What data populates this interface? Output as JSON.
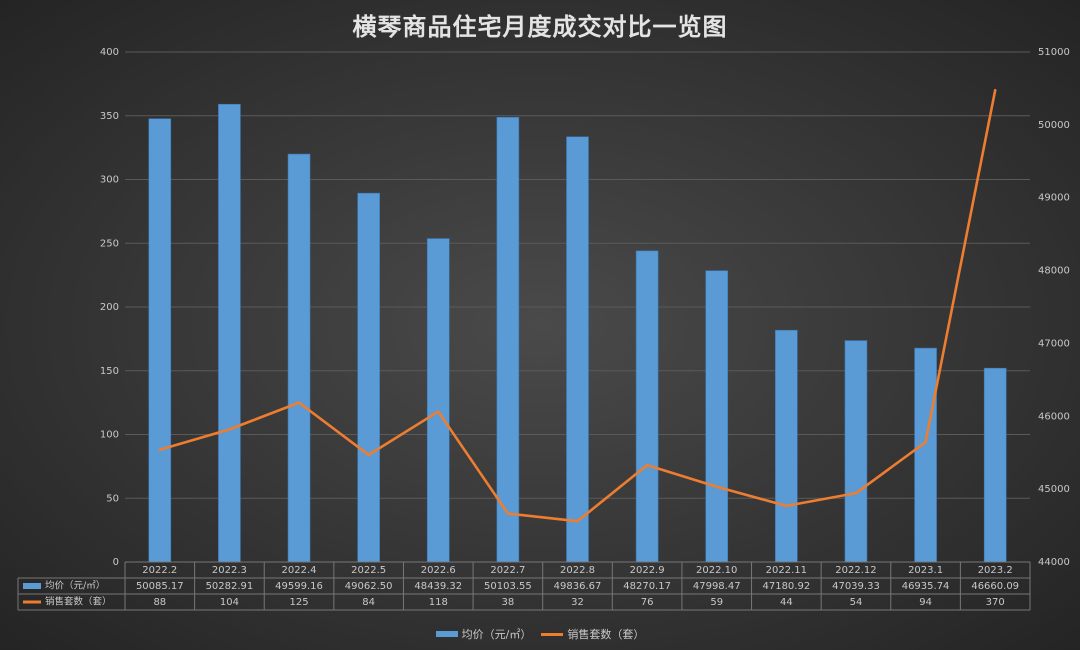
{
  "colors": {
    "bar": "#5b9bd5",
    "bar_edge": "#3a78b8",
    "line": "#ed7d31",
    "grid": "#5a5a5a",
    "axis_text": "#c8c8c8",
    "table_border": "#777777"
  },
  "chart_data": {
    "type": "bar",
    "title": "横琴商品住宅月度成交对比一览图",
    "categories": [
      "2022.2",
      "2022.3",
      "2022.4",
      "2022.5",
      "2022.6",
      "2022.7",
      "2022.8",
      "2022.9",
      "2022.10",
      "2022.11",
      "2022.12",
      "2023.1",
      "2023.2"
    ],
    "series": [
      {
        "name": "均价（元/㎡）",
        "type": "bar",
        "axis": "right",
        "values": [
          50085.17,
          50282.91,
          49599.16,
          49062.5,
          48439.32,
          50103.55,
          49836.67,
          48270.17,
          47998.47,
          47180.92,
          47039.33,
          46935.74,
          46660.09
        ],
        "labels": [
          "50085.17",
          "50282.91",
          "49599.16",
          "49062.50",
          "48439.32",
          "50103.55",
          "49836.67",
          "48270.17",
          "47998.47",
          "47180.92",
          "47039.33",
          "46935.74",
          "46660.09"
        ]
      },
      {
        "name": "销售套数（套）",
        "type": "line",
        "axis": "left",
        "values": [
          88,
          104,
          125,
          84,
          118,
          38,
          32,
          76,
          59,
          44,
          54,
          94,
          370
        ],
        "labels": [
          "88",
          "104",
          "125",
          "84",
          "118",
          "38",
          "32",
          "76",
          "59",
          "44",
          "54",
          "94",
          "370"
        ]
      }
    ],
    "left_axis": {
      "min": 0,
      "max": 400,
      "ticks": [
        "0",
        "50",
        "100",
        "150",
        "200",
        "250",
        "300",
        "350",
        "400"
      ]
    },
    "right_axis": {
      "min": 44000,
      "max": 51000,
      "ticks": [
        "44000",
        "45000",
        "46000",
        "47000",
        "48000",
        "49000",
        "50000",
        "51000"
      ]
    },
    "grid": true,
    "legend_position": "bottom",
    "data_table": true
  }
}
